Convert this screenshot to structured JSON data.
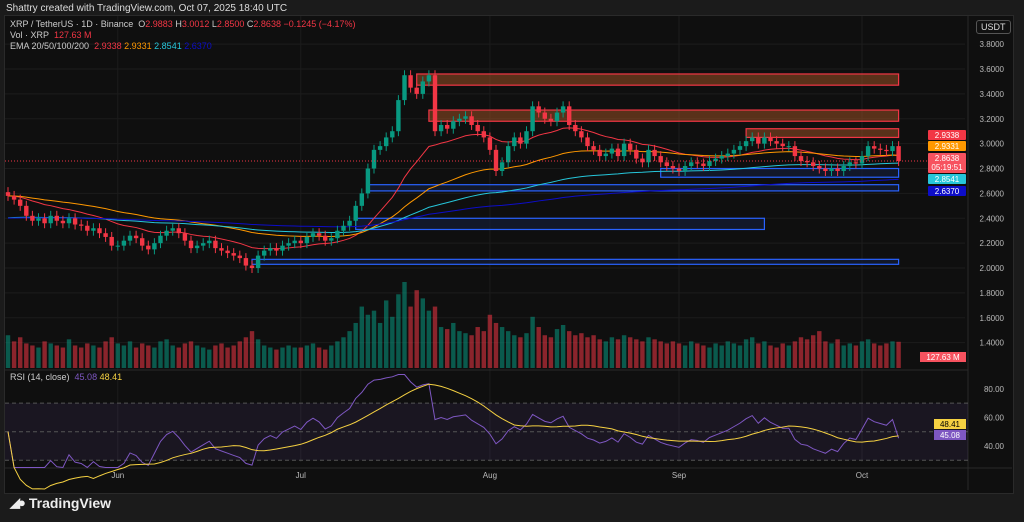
{
  "credit": "Shattry created with TradingView.com, Oct 07, 2025 18:40 UTC",
  "legend": {
    "symbol": "XRP / TetherUS · 1D · Binance",
    "open_label": "O",
    "open": "2.9883",
    "high_label": "H",
    "high": "3.0012",
    "low_label": "L",
    "low": "2.8500",
    "close_label": "C",
    "close": "2.8638",
    "change": "−0.1245 (−4.17%)",
    "vol_label": "Vol · XRP",
    "vol": "127.63 M",
    "ema_label": "EMA 20/50/100/200",
    "ema20": "2.9338",
    "ema50": "2.9331",
    "ema100": "2.8541",
    "ema200": "2.6370",
    "rsi_label": "RSI (14, close)",
    "rsi": "45.08",
    "rsi_ma": "48.41"
  },
  "currency_button": "USDT",
  "logo_text": "TradingView",
  "price_labels": [
    {
      "text": "2.9338",
      "color": "#f23645"
    },
    {
      "text": "2.9331",
      "color": "#ff9800"
    },
    {
      "text": "2.8638",
      "sub": "05:19:51",
      "color": "#f7525f"
    },
    {
      "text": "2.8541",
      "color": "#26c6da"
    },
    {
      "text": "2.6370",
      "color": "#0d0dc9"
    }
  ],
  "volume_label": "127.63 M",
  "rsi_labels": [
    {
      "text": "48.41",
      "color": "#f5d142"
    },
    {
      "text": "45.08",
      "color": "#7e57c2"
    }
  ],
  "chart_data": {
    "type": "candlestick",
    "symbol": "XRP/USDT",
    "start_date": "2025-05-14",
    "x_ticks": [
      {
        "label": "Jun",
        "day": 18
      },
      {
        "label": "Jul",
        "day": 48
      },
      {
        "label": "Aug",
        "day": 79
      },
      {
        "label": "Sep",
        "day": 110
      },
      {
        "label": "Oct",
        "day": 140
      }
    ],
    "price_ticks": [
      "3.8000",
      "3.6000",
      "3.4000",
      "3.2000",
      "3.0000",
      "2.8000",
      "2.6000",
      "2.4000",
      "2.2000",
      "2.0000",
      "1.8000",
      "1.6000",
      "1.4000"
    ],
    "ylim": [
      1.38,
      3.85
    ],
    "close": [
      2.58,
      2.55,
      2.5,
      2.42,
      2.38,
      2.4,
      2.36,
      2.42,
      2.38,
      2.36,
      2.4,
      2.35,
      2.34,
      2.3,
      2.32,
      2.28,
      2.25,
      2.18,
      2.18,
      2.22,
      2.26,
      2.24,
      2.18,
      2.15,
      2.2,
      2.26,
      2.3,
      2.32,
      2.28,
      2.22,
      2.16,
      2.18,
      2.2,
      2.22,
      2.16,
      2.14,
      2.12,
      2.1,
      2.08,
      2.02,
      2.0,
      2.1,
      2.14,
      2.16,
      2.14,
      2.18,
      2.2,
      2.22,
      2.2,
      2.25,
      2.28,
      2.26,
      2.22,
      2.24,
      2.3,
      2.34,
      2.38,
      2.5,
      2.6,
      2.8,
      2.95,
      2.98,
      3.05,
      3.1,
      3.35,
      3.55,
      3.45,
      3.4,
      3.5,
      3.55,
      3.1,
      3.15,
      3.12,
      3.18,
      3.2,
      3.22,
      3.15,
      3.1,
      3.05,
      2.95,
      2.78,
      2.85,
      2.98,
      3.05,
      3.0,
      3.1,
      3.3,
      3.25,
      3.2,
      3.18,
      3.25,
      3.3,
      3.15,
      3.1,
      3.05,
      2.98,
      2.95,
      2.9,
      2.92,
      2.96,
      2.9,
      3.0,
      2.95,
      2.88,
      2.85,
      2.95,
      2.9,
      2.85,
      2.82,
      2.8,
      2.78,
      2.82,
      2.85,
      2.84,
      2.82,
      2.86,
      2.88,
      2.9,
      2.92,
      2.95,
      2.98,
      3.02,
      3.05,
      3.0,
      3.05,
      3.02,
      3.0,
      2.98,
      2.98,
      2.9,
      2.86,
      2.85,
      2.82,
      2.8,
      2.78,
      2.8,
      2.78,
      2.82,
      2.85,
      2.84,
      2.9,
      2.98,
      2.96,
      2.95,
      2.94,
      2.98,
      2.86
    ],
    "volume_m": [
      160,
      130,
      150,
      120,
      110,
      100,
      130,
      120,
      110,
      100,
      140,
      110,
      100,
      120,
      110,
      100,
      130,
      150,
      120,
      110,
      130,
      100,
      120,
      110,
      100,
      130,
      140,
      110,
      100,
      120,
      130,
      110,
      100,
      90,
      110,
      120,
      100,
      110,
      130,
      150,
      180,
      140,
      110,
      100,
      90,
      100,
      110,
      100,
      100,
      110,
      120,
      100,
      90,
      110,
      130,
      150,
      180,
      220,
      300,
      260,
      280,
      220,
      330,
      250,
      360,
      420,
      300,
      380,
      340,
      280,
      300,
      200,
      190,
      220,
      180,
      170,
      160,
      200,
      180,
      260,
      220,
      200,
      180,
      160,
      150,
      170,
      250,
      200,
      160,
      150,
      190,
      210,
      180,
      160,
      170,
      150,
      160,
      140,
      130,
      150,
      140,
      160,
      150,
      140,
      130,
      150,
      140,
      130,
      120,
      130,
      120,
      110,
      130,
      120,
      110,
      100,
      120,
      110,
      130,
      120,
      110,
      140,
      150,
      120,
      130,
      110,
      100,
      120,
      110,
      130,
      150,
      140,
      160,
      180,
      130,
      120,
      140,
      110,
      120,
      110,
      130,
      140,
      120,
      110,
      120,
      130,
      128
    ],
    "zones": [
      {
        "type": "supply",
        "top": 3.56,
        "bottom": 3.47,
        "start": 67,
        "end": 146
      },
      {
        "type": "supply",
        "top": 3.27,
        "bottom": 3.18,
        "start": 69,
        "end": 146
      },
      {
        "type": "supply",
        "top": 3.12,
        "bottom": 3.05,
        "start": 121,
        "end": 146
      },
      {
        "type": "demand",
        "top": 2.8,
        "bottom": 2.73,
        "start": 107,
        "end": 146
      },
      {
        "type": "demand",
        "top": 2.67,
        "bottom": 2.62,
        "start": 59,
        "end": 146
      },
      {
        "type": "demand",
        "top": 2.4,
        "bottom": 2.31,
        "start": 57,
        "end": 124
      },
      {
        "type": "demand",
        "top": 2.07,
        "bottom": 2.03,
        "start": 40,
        "end": 146
      }
    ],
    "rsi_ticks": [
      "80.00",
      "60.00",
      "40.00"
    ],
    "colors": {
      "up": "#089981",
      "down": "#f23645",
      "ema20": "#f23645",
      "ema50": "#ff9800",
      "ema100": "#26c6da",
      "ema200": "#0d0dc9",
      "rsi": "#7e57c2",
      "rsi_ma": "#f5d142"
    }
  }
}
